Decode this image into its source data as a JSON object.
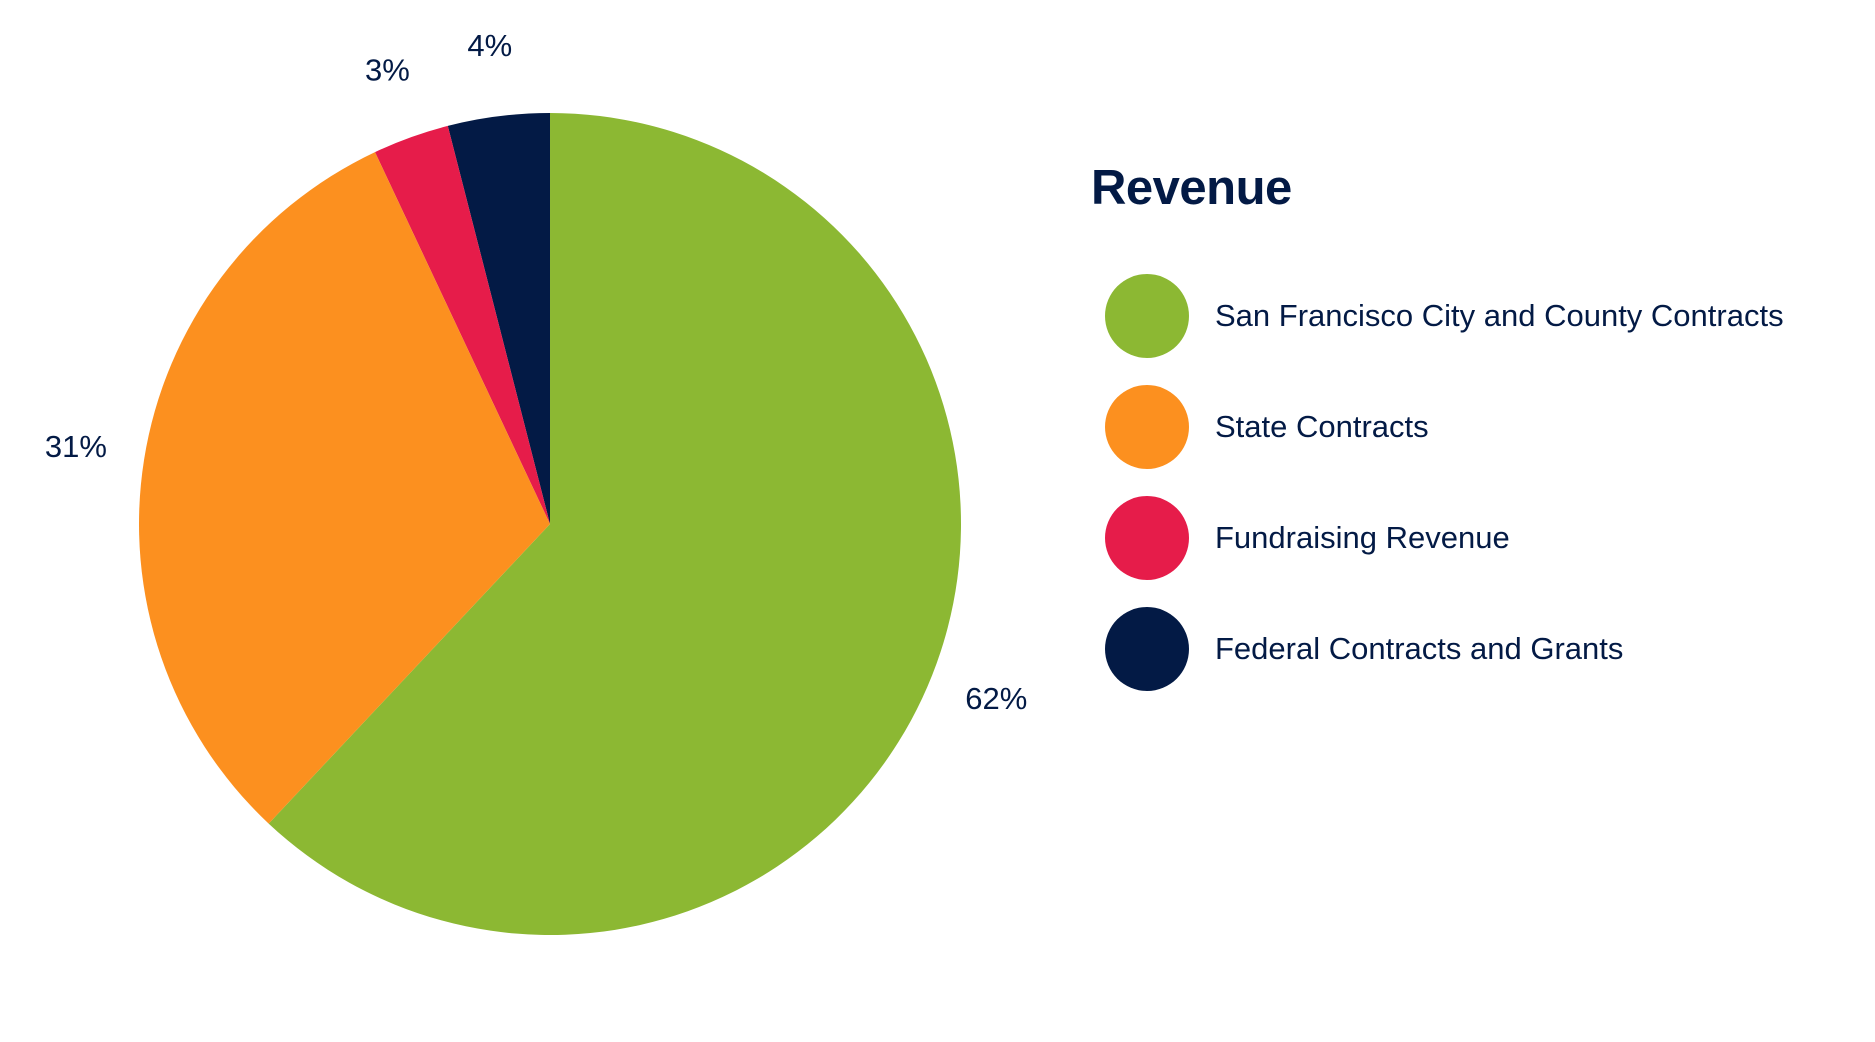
{
  "chart_data": {
    "type": "pie",
    "title": "Revenue",
    "categories": [
      "San Francisco City and County Contracts",
      "State Contracts",
      "Fundraising Revenue",
      "Federal Contracts and Grants"
    ],
    "values": [
      62,
      31,
      3,
      4
    ],
    "labels": [
      "62%",
      "31%",
      "3%",
      "4%"
    ],
    "colors": [
      "#8cb833",
      "#fc901f",
      "#e61c4a",
      "#031a45"
    ],
    "start_angle_deg": 0,
    "direction": "clockwise",
    "legend_position": "right"
  }
}
